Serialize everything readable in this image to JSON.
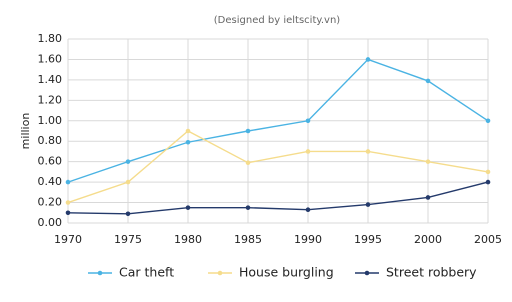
{
  "chart_data": {
    "type": "line",
    "subtitle": "(Designed by ieltscity.vn)",
    "y_label": "million",
    "x": [
      1970,
      1975,
      1980,
      1985,
      1990,
      1995,
      2000,
      2005
    ],
    "xlim": [
      1970,
      2005
    ],
    "xticks": [
      1970,
      1975,
      1980,
      1985,
      1990,
      1995,
      2000,
      2005
    ],
    "ylim": [
      0,
      1.8
    ],
    "yticks": [
      {
        "value": 0,
        "label": "0.00"
      },
      {
        "value": 0.2,
        "label": "0.20"
      },
      {
        "value": 0.4,
        "label": "0.40"
      },
      {
        "value": 0.6,
        "label": "0.60"
      },
      {
        "value": 0.8,
        "label": "0.80"
      },
      {
        "value": 1,
        "label": "1.00"
      },
      {
        "value": 1.2,
        "label": "1.20"
      },
      {
        "value": 1.4,
        "label": "1.40"
      },
      {
        "value": 1.6,
        "label": "1.60"
      },
      {
        "value": 1.8,
        "label": "1.80"
      }
    ],
    "grid": true,
    "legend": "bottom",
    "series": [
      {
        "name": "Car theft",
        "color": "#4ab3e3",
        "values": [
          0.4,
          0.6,
          0.79,
          0.9,
          1.0,
          1.6,
          1.39,
          1.0
        ]
      },
      {
        "name": "House burgling",
        "color": "#f5dc8c",
        "values": [
          0.2,
          0.4,
          0.9,
          0.59,
          0.7,
          0.7,
          0.6,
          0.5
        ]
      },
      {
        "name": "Street robbery",
        "color": "#243a6b",
        "values": [
          0.1,
          0.09,
          0.15,
          0.15,
          0.13,
          0.18,
          0.25,
          0.4
        ]
      }
    ]
  }
}
